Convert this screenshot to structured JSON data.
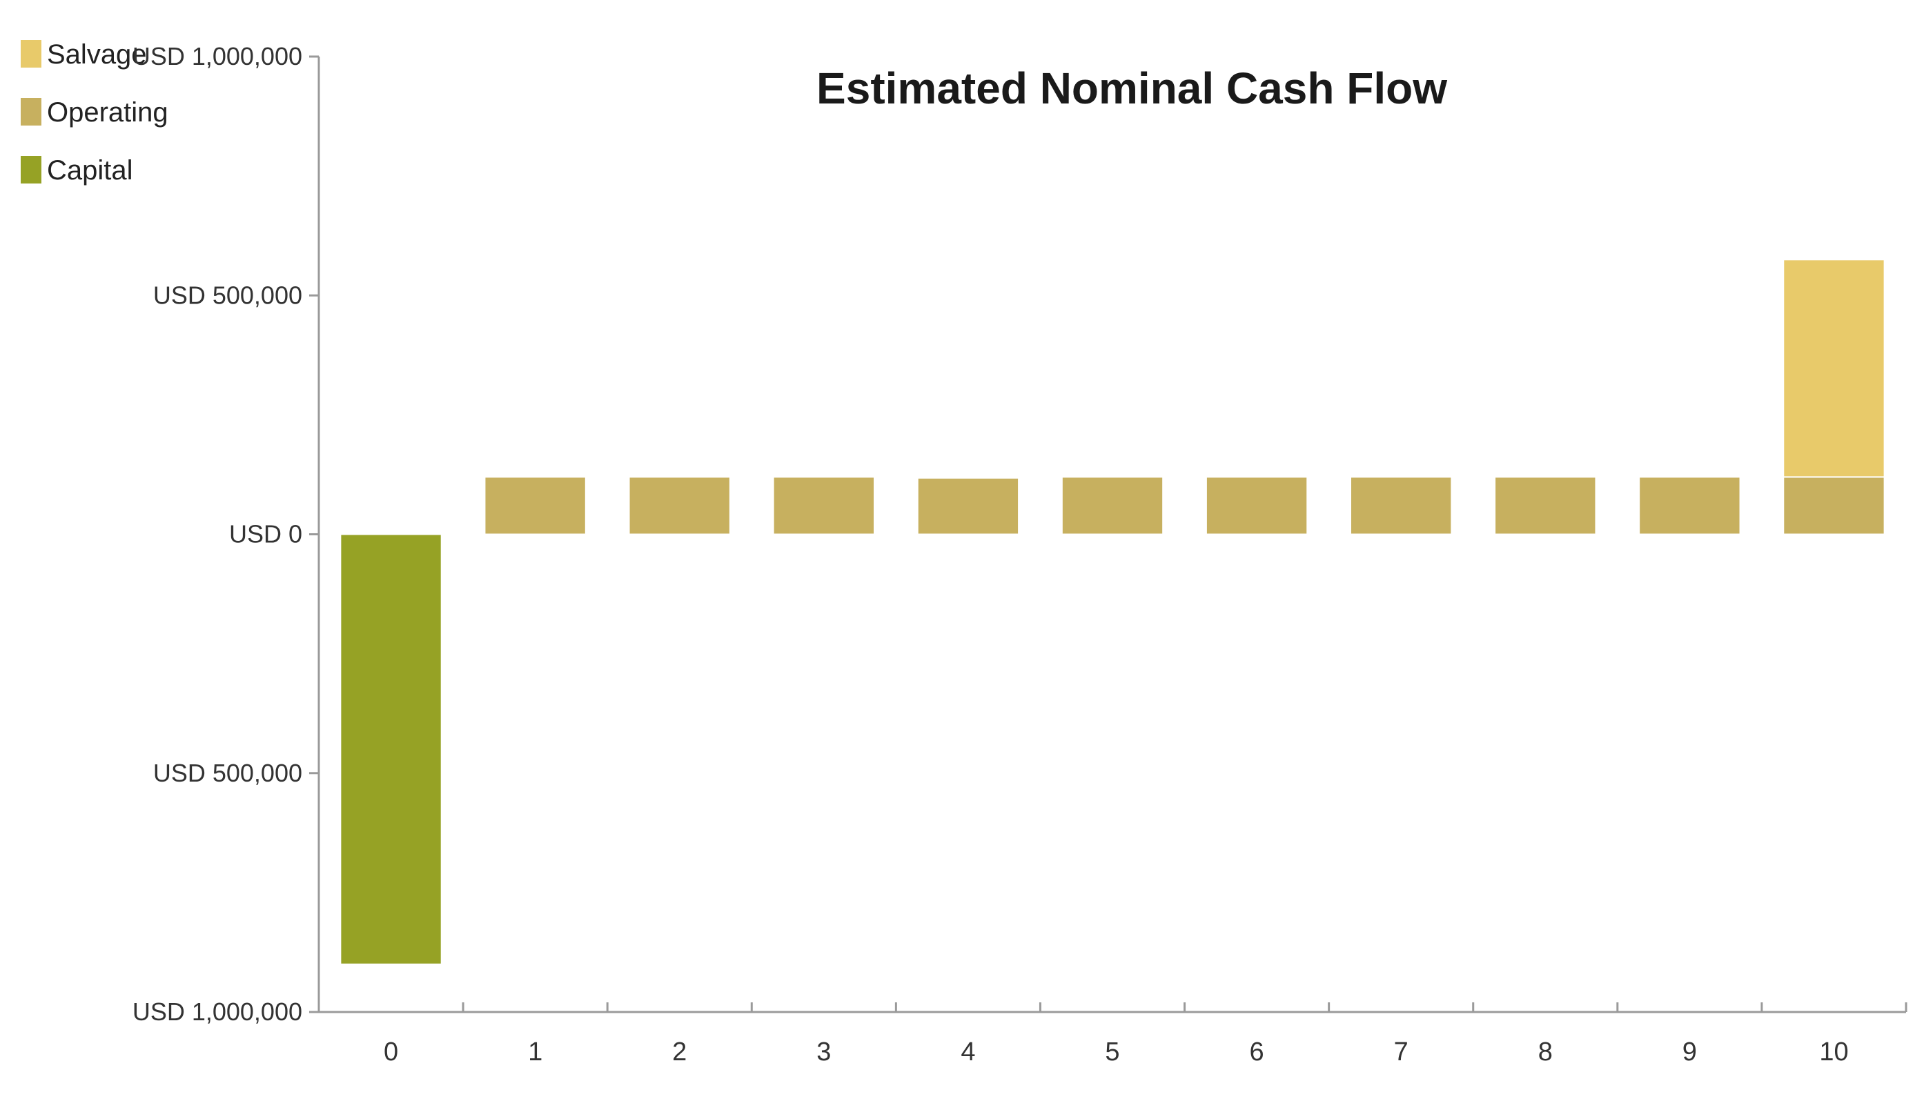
{
  "chart_data": {
    "type": "bar",
    "stacked": true,
    "title": "Estimated Nominal Cash Flow",
    "xlabel": "",
    "ylabel": "",
    "categories": [
      "0",
      "1",
      "2",
      "3",
      "4",
      "5",
      "6",
      "7",
      "8",
      "9",
      "10"
    ],
    "series": [
      {
        "name": "Capital",
        "color": "#96a225",
        "values": [
          -900000,
          0,
          0,
          0,
          0,
          0,
          0,
          0,
          0,
          0,
          0
        ]
      },
      {
        "name": "Operating",
        "color": "#c7b05f",
        "values": [
          0,
          120000,
          120000,
          120000,
          118000,
          120000,
          120000,
          120000,
          120000,
          120000,
          120000
        ]
      },
      {
        "name": "Salvage",
        "color": "#e8ca6a",
        "values": [
          0,
          0,
          0,
          0,
          0,
          0,
          0,
          0,
          0,
          0,
          455000
        ]
      }
    ],
    "legend_order": [
      "Salvage",
      "Operating",
      "Capital"
    ],
    "legend_position": "top-left",
    "ylim": [
      -1000000,
      1000000
    ],
    "yticks": [
      {
        "value": 1000000,
        "label": "USD 1,000,000"
      },
      {
        "value": 500000,
        "label": "USD 500,000"
      },
      {
        "value": 0,
        "label": "USD 0"
      },
      {
        "value": -500000,
        "label": "USD 500,000"
      },
      {
        "value": -1000000,
        "label": "USD 1,000,000"
      }
    ],
    "grid": false
  }
}
